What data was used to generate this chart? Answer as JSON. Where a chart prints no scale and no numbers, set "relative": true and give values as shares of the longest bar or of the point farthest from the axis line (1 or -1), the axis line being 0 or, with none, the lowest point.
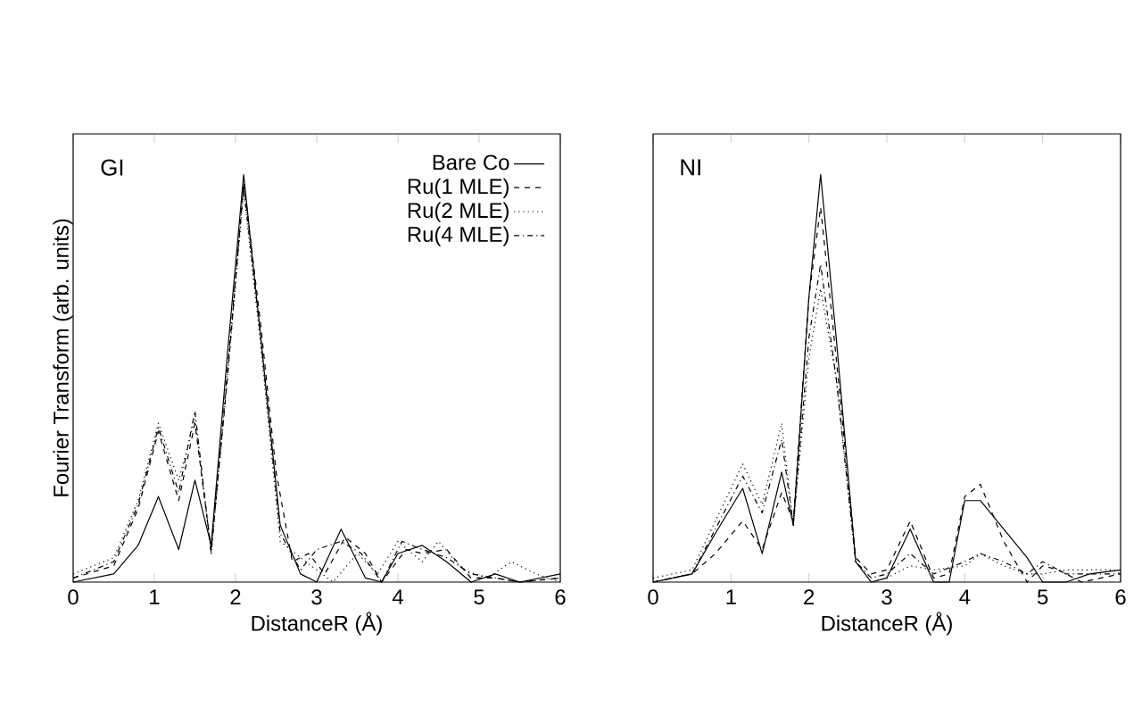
{
  "chart_data": [
    {
      "type": "line",
      "relative": true,
      "xlabel": "DistanceR (Å)",
      "ylabel": "Fourier Transform   (arb. units)",
      "annotations": [
        "GI"
      ],
      "xlim": [
        0,
        6
      ],
      "xticks": [
        0,
        1,
        2,
        3,
        4,
        5,
        6
      ],
      "tick_labels": "x",
      "legend": "top right",
      "series": [
        {
          "name": "Bare Co",
          "color": "#000000",
          "line_style": "solid",
          "x": [
            0,
            0.5,
            0.8,
            1.05,
            1.3,
            1.5,
            1.7,
            1.9,
            2.1,
            2.3,
            2.55,
            2.8,
            3.0,
            3.3,
            3.6,
            3.8,
            4.0,
            4.3,
            4.6,
            4.9,
            5.2,
            5.5,
            6
          ],
          "values": [
            0,
            0.02,
            0.09,
            0.21,
            0.08,
            0.25,
            0.09,
            0.56,
            1.0,
            0.62,
            0.14,
            0.02,
            0,
            0.13,
            0.01,
            0,
            0.07,
            0.09,
            0.05,
            0,
            0.02,
            0,
            0.02
          ]
        },
        {
          "name": "Ru(1 MLE)",
          "color": "#000000",
          "line_style": "dashed",
          "x": [
            0,
            0.5,
            0.8,
            1.05,
            1.3,
            1.5,
            1.7,
            1.9,
            2.1,
            2.3,
            2.5,
            2.7,
            2.9,
            3.1,
            3.35,
            3.6,
            3.8,
            4.1,
            4.3,
            4.6,
            4.9,
            5.2,
            5.5,
            6
          ],
          "values": [
            0.01,
            0.04,
            0.18,
            0.37,
            0.2,
            0.39,
            0.08,
            0.5,
            0.98,
            0.65,
            0.27,
            0.05,
            0.07,
            0.02,
            0.11,
            0.07,
            0,
            0.08,
            0.07,
            0.08,
            0.01,
            0.01,
            0,
            0.01
          ]
        },
        {
          "name": "Ru(2 MLE)",
          "color": "#000000",
          "line_style": "dotted",
          "x": [
            0,
            0.5,
            0.8,
            1.05,
            1.3,
            1.5,
            1.7,
            1.9,
            2.1,
            2.3,
            2.55,
            2.8,
            3.0,
            3.2,
            3.5,
            3.75,
            4.0,
            4.3,
            4.5,
            4.8,
            5.1,
            5.4,
            5.7,
            6
          ],
          "values": [
            0.02,
            0.06,
            0.2,
            0.39,
            0.25,
            0.4,
            0.07,
            0.5,
            0.96,
            0.6,
            0.1,
            0.06,
            0.03,
            0,
            0.07,
            0.02,
            0.1,
            0.05,
            0.1,
            0.03,
            0.01,
            0.05,
            0.02,
            0
          ]
        },
        {
          "name": "Ru(4 MLE)",
          "color": "#000000",
          "line_style": "dashdot",
          "x": [
            0,
            0.5,
            0.8,
            1.05,
            1.3,
            1.5,
            1.7,
            1.9,
            2.1,
            2.3,
            2.55,
            2.8,
            3.0,
            3.3,
            3.55,
            3.8,
            4.05,
            4.3,
            4.6,
            4.9,
            5.2,
            5.5,
            6
          ],
          "values": [
            0.01,
            0.05,
            0.19,
            0.38,
            0.22,
            0.42,
            0.07,
            0.52,
            0.97,
            0.62,
            0.12,
            0.03,
            0.08,
            0.1,
            0.07,
            0,
            0.1,
            0.08,
            0.06,
            0.02,
            0.01,
            0,
            0.01
          ]
        }
      ]
    },
    {
      "type": "line",
      "relative": true,
      "xlabel": "DistanceR (Å)",
      "annotations": [
        "NI"
      ],
      "xlim": [
        0,
        6
      ],
      "xticks": [
        0,
        1,
        2,
        3,
        4,
        5,
        6
      ],
      "tick_labels": "x",
      "series": [
        {
          "color": "#000000",
          "line_style": "solid",
          "x": [
            0,
            0.5,
            0.8,
            1.15,
            1.4,
            1.65,
            1.8,
            2.0,
            2.15,
            2.35,
            2.6,
            2.8,
            3.0,
            3.3,
            3.6,
            3.8,
            4.0,
            4.2,
            4.5,
            4.8,
            5.0,
            5.3,
            5.6,
            6
          ],
          "values": [
            0,
            0.02,
            0.12,
            0.23,
            0.07,
            0.27,
            0.14,
            0.7,
            1.0,
            0.6,
            0.05,
            0,
            0.01,
            0.13,
            0,
            0,
            0.2,
            0.2,
            0.13,
            0.06,
            0,
            0,
            0.02,
            0.03
          ]
        },
        {
          "color": "#000000",
          "line_style": "dashed",
          "x": [
            0,
            0.5,
            0.8,
            1.15,
            1.4,
            1.65,
            1.8,
            2.0,
            2.15,
            2.35,
            2.6,
            2.8,
            3.0,
            3.3,
            3.6,
            3.8,
            4.0,
            4.2,
            4.5,
            4.8,
            5.0,
            5.2,
            5.5,
            6
          ],
          "values": [
            0,
            0.02,
            0.07,
            0.15,
            0.08,
            0.22,
            0.15,
            0.7,
            0.92,
            0.55,
            0.06,
            0.02,
            0.03,
            0.15,
            0.01,
            0.02,
            0.21,
            0.24,
            0.1,
            0,
            0.04,
            0.03,
            0,
            0.02
          ]
        },
        {
          "color": "#000000",
          "line_style": "dotted",
          "x": [
            0,
            0.5,
            0.8,
            1.15,
            1.4,
            1.65,
            1.8,
            2.0,
            2.15,
            2.35,
            2.6,
            2.8,
            3.0,
            3.3,
            3.6,
            4.0,
            4.2,
            4.5,
            4.8,
            5.0,
            5.3,
            5.6,
            5.9,
            6
          ],
          "values": [
            0.01,
            0.03,
            0.15,
            0.29,
            0.19,
            0.39,
            0.14,
            0.55,
            0.72,
            0.5,
            0.05,
            0,
            0.01,
            0.04,
            0.03,
            0.04,
            0.07,
            0.04,
            0.02,
            0.02,
            0.03,
            0.03,
            0.03,
            0.02
          ]
        },
        {
          "color": "#000000",
          "line_style": "dashdot",
          "x": [
            0,
            0.5,
            0.8,
            1.15,
            1.4,
            1.65,
            1.8,
            2.0,
            2.15,
            2.35,
            2.6,
            2.8,
            3.0,
            3.3,
            3.6,
            4.0,
            4.2,
            4.5,
            4.8,
            5.0,
            5.3,
            5.6,
            6
          ],
          "values": [
            0,
            0.02,
            0.13,
            0.26,
            0.17,
            0.35,
            0.14,
            0.6,
            0.78,
            0.5,
            0.05,
            0.01,
            0.02,
            0.07,
            0.02,
            0.05,
            0.07,
            0.05,
            0.02,
            0.05,
            0.02,
            0.02,
            0.02
          ]
        }
      ]
    }
  ]
}
